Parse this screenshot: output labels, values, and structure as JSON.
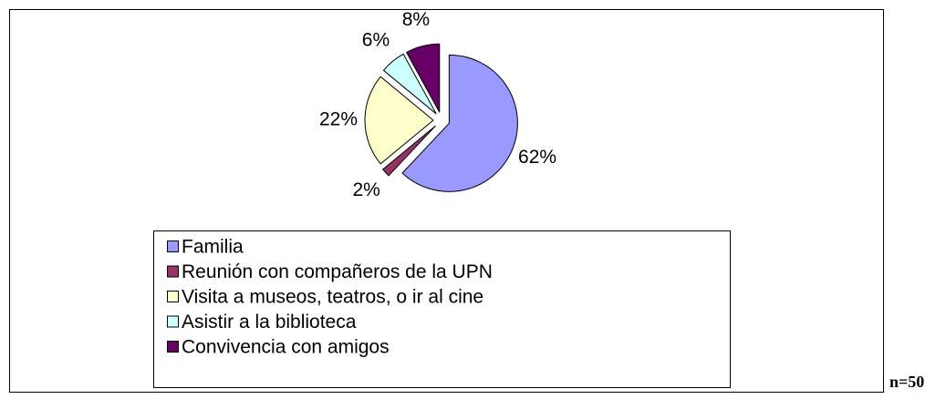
{
  "chart_data": {
    "type": "pie",
    "categories": [
      "Familia",
      "Reunión con compañeros de la UPN",
      "Visita a museos, teatros, o ir al cine",
      "Asistir a la biblioteca",
      "Convivencia con amigos"
    ],
    "values": [
      62,
      2,
      22,
      6,
      8
    ],
    "value_labels": [
      "62%",
      "2%",
      "22%",
      "6%",
      "8%"
    ],
    "colors": [
      "#9999ff",
      "#993366",
      "#ffffcc",
      "#ccffff",
      "#660066"
    ],
    "legend": "bottom",
    "annotation": "n=50"
  }
}
